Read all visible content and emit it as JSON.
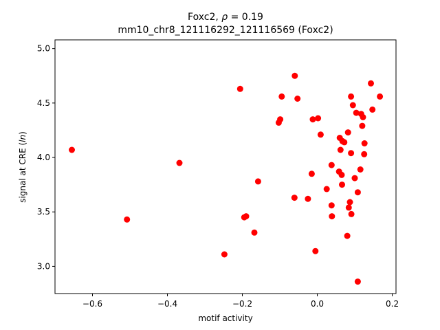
{
  "chart_data": {
    "type": "scatter",
    "title": "Foxc2, ρ = 0.19",
    "subtitle": "mm10_chr8_121116292_121116569 (Foxc2)",
    "xlabel": "motif activity",
    "ylabel": "signal at CRE (ln)",
    "xlim": [
      -0.7,
      0.21
    ],
    "ylim": [
      2.75,
      5.08
    ],
    "xticks": [
      -0.6,
      -0.4,
      -0.2,
      0.0,
      0.2
    ],
    "xtick_labels": [
      "−0.6",
      "−0.4",
      "−0.2",
      "0.0",
      "0.2"
    ],
    "yticks": [
      3.0,
      3.5,
      4.0,
      4.5,
      5.0
    ],
    "ytick_labels": [
      "3.0",
      "3.5",
      "4.0",
      "4.5",
      "5.0"
    ],
    "grid": false,
    "marker_color": "#ff0000",
    "x": [
      -0.655,
      -0.508,
      -0.368,
      -0.248,
      -0.206,
      -0.195,
      -0.19,
      -0.168,
      -0.158,
      -0.103,
      -0.099,
      -0.095,
      -0.06,
      -0.061,
      -0.053,
      -0.025,
      -0.015,
      -0.012,
      -0.005,
      0.002,
      0.009,
      0.025,
      0.038,
      0.038,
      0.039,
      0.058,
      0.06,
      0.062,
      0.065,
      0.066,
      0.067,
      0.072,
      0.08,
      0.082,
      0.084,
      0.087,
      0.09,
      0.09,
      0.091,
      0.095,
      0.1,
      0.104,
      0.108,
      0.108,
      0.115,
      0.117,
      0.12,
      0.122,
      0.125,
      0.126,
      0.143,
      0.147,
      0.167
    ],
    "y": [
      4.07,
      3.43,
      3.95,
      3.11,
      4.63,
      3.45,
      3.46,
      3.31,
      3.78,
      4.32,
      4.35,
      4.56,
      4.75,
      3.63,
      4.54,
      3.62,
      3.85,
      4.35,
      3.14,
      4.36,
      4.21,
      3.71,
      3.93,
      3.56,
      3.46,
      3.87,
      4.18,
      4.07,
      3.84,
      3.75,
      4.15,
      4.14,
      3.28,
      4.23,
      3.54,
      3.59,
      4.04,
      4.56,
      3.48,
      4.48,
      3.81,
      4.41,
      3.68,
      2.86,
      3.89,
      4.4,
      4.29,
      4.37,
      4.03,
      4.13,
      4.68,
      4.44,
      4.56
    ]
  }
}
